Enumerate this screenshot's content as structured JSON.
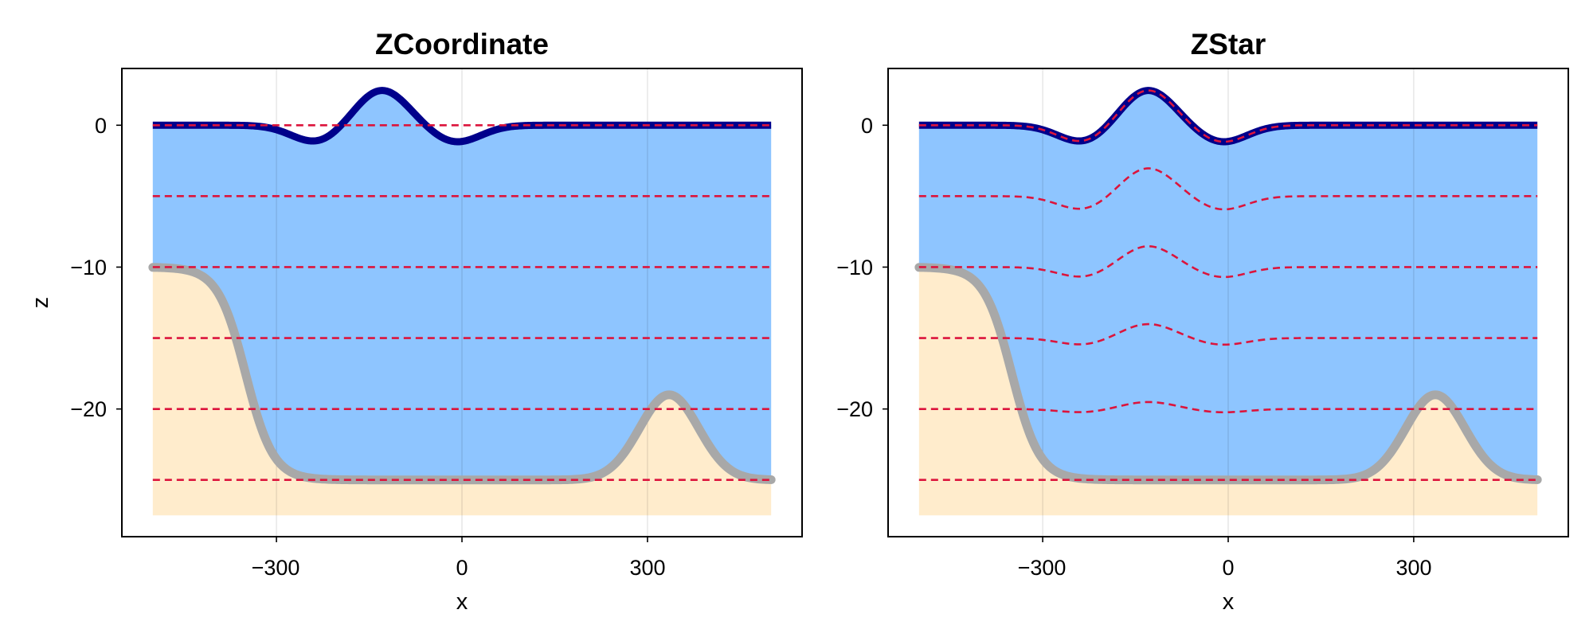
{
  "chart_data": [
    {
      "type": "line",
      "title": "ZCoordinate",
      "xlabel": "x",
      "ylabel": "z",
      "x_ticks": [
        -300,
        0,
        300
      ],
      "x_tick_labels": [
        "−300",
        "0",
        "300"
      ],
      "y_ticks": [
        0,
        -10,
        -20
      ],
      "y_tick_labels": [
        "0",
        "−10",
        "−20"
      ],
      "xlim": [
        -550,
        550
      ],
      "ylim": [
        -29,
        4
      ],
      "grid": "vertical",
      "layer_mode": "fixed",
      "layer_depths": [
        0,
        -5,
        -10,
        -15,
        -20,
        -25
      ],
      "domain_x": [
        -500,
        500
      ],
      "domain_bottom": -27.5,
      "free_surface": {
        "description": "eta(x)",
        "peak": {
          "x": -130,
          "z": 2.5
        },
        "troughs": [
          {
            "x": -235,
            "z": -1.2
          },
          {
            "x": -10,
            "z": -1.2
          }
        ]
      },
      "bathymetry": {
        "shelf_depth": -10,
        "basin_depth": -25,
        "slope_center_x": -350,
        "seamount": {
          "x": 335,
          "z": -19
        }
      },
      "colors": {
        "water": "#8ec5ff",
        "sediment": "#ffeccc",
        "free_surface": "#00008b",
        "bathymetry": "#a8a8a8",
        "layers": "#dc143c"
      }
    },
    {
      "type": "line",
      "title": "ZStar",
      "xlabel": "x",
      "ylabel": "",
      "x_ticks": [
        -300,
        0,
        300
      ],
      "x_tick_labels": [
        "−300",
        "0",
        "300"
      ],
      "y_ticks": [
        0,
        -10,
        -20
      ],
      "y_tick_labels": [
        "0",
        "−10",
        "−20"
      ],
      "xlim": [
        -550,
        550
      ],
      "ylim": [
        -29,
        4
      ],
      "grid": "vertical",
      "layer_mode": "zstar",
      "layer_depths": [
        0,
        -5,
        -10,
        -15,
        -20,
        -25
      ],
      "domain_x": [
        -500,
        500
      ],
      "domain_bottom": -27.5,
      "free_surface": {
        "description": "eta(x)",
        "peak": {
          "x": -130,
          "z": 2.5
        },
        "troughs": [
          {
            "x": -235,
            "z": -1.2
          },
          {
            "x": -10,
            "z": -1.2
          }
        ]
      },
      "bathymetry": {
        "shelf_depth": -10,
        "basin_depth": -25,
        "slope_center_x": -350,
        "seamount": {
          "x": 335,
          "z": -19
        }
      },
      "colors": {
        "water": "#8ec5ff",
        "sediment": "#ffeccc",
        "free_surface": "#00008b",
        "bathymetry": "#a8a8a8",
        "layers": "#dc143c"
      }
    }
  ]
}
